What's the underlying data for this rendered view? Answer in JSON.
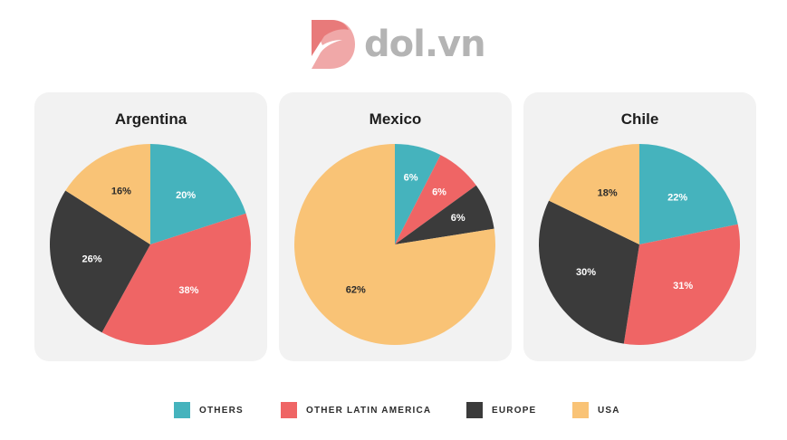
{
  "brand": {
    "name": "dol.vn",
    "logo_icon": "dol-logo-icon"
  },
  "colors": {
    "others": "#45b3bd",
    "other_latin_america": "#ef6565",
    "europe": "#3b3b3b",
    "usa": "#f9c376"
  },
  "legend": [
    {
      "label": "OTHERS",
      "color": "#45b3bd"
    },
    {
      "label": "OTHER LATIN AMERICA",
      "color": "#ef6565"
    },
    {
      "label": "EUROPE",
      "color": "#3b3b3b"
    },
    {
      "label": "USA",
      "color": "#f9c376"
    }
  ],
  "chart_data": [
    {
      "type": "pie",
      "title": "Argentina",
      "categories": [
        "OTHERS",
        "OTHER LATIN AMERICA",
        "EUROPE",
        "USA"
      ],
      "values": [
        20,
        38,
        26,
        16
      ],
      "labels": [
        "20%",
        "38%",
        "26%",
        "16%"
      ]
    },
    {
      "type": "pie",
      "title": "Mexico",
      "categories": [
        "OTHERS",
        "OTHER LATIN AMERICA",
        "EUROPE",
        "USA"
      ],
      "values": [
        6,
        6,
        6,
        62
      ],
      "labels": [
        "6%",
        "6%",
        "6%",
        "62%"
      ]
    },
    {
      "type": "pie",
      "title": "Chile",
      "categories": [
        "OTHERS",
        "OTHER LATIN AMERICA",
        "EUROPE",
        "USA"
      ],
      "values": [
        22,
        31,
        30,
        18
      ],
      "labels": [
        "22%",
        "31%",
        "30%",
        "18%"
      ]
    }
  ]
}
